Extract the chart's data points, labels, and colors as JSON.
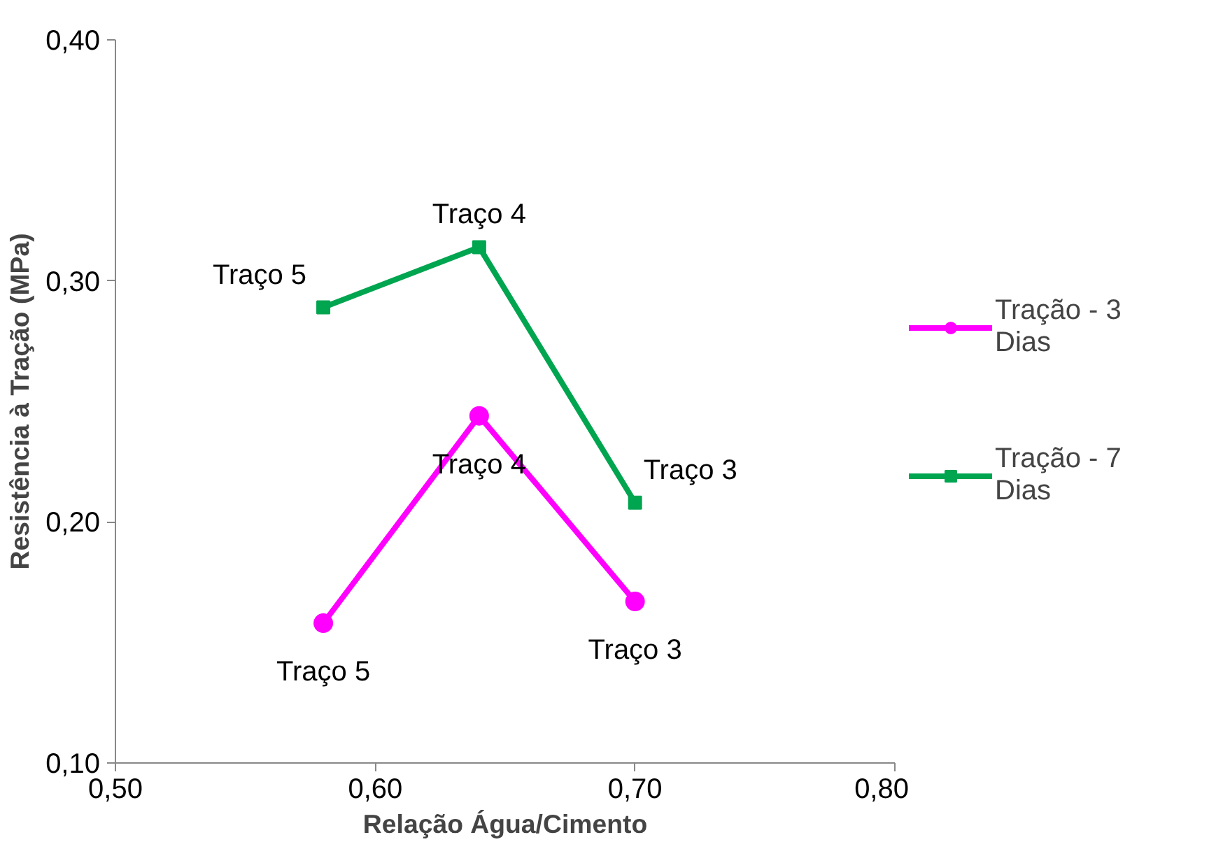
{
  "chart_data": {
    "type": "line",
    "xlabel": "Relação Água/Cimento",
    "ylabel": "Resistência à Tração (MPa)",
    "x": [
      0.58,
      0.64,
      0.7
    ],
    "series": [
      {
        "name": "Tração - 3 Dias",
        "color": "#ff00ff",
        "marker": "circle",
        "values": [
          0.158,
          0.244,
          0.167
        ]
      },
      {
        "name": "Tração - 7 Dias",
        "color": "#00a550",
        "marker": "square",
        "values": [
          0.289,
          0.314,
          0.208
        ]
      }
    ],
    "xlim": [
      0.5,
      0.8
    ],
    "ylim": [
      0.1,
      0.4
    ],
    "xticks": [
      {
        "value": 0.5,
        "label": "0,50"
      },
      {
        "value": 0.6,
        "label": "0,60"
      },
      {
        "value": 0.7,
        "label": "0,70"
      },
      {
        "value": 0.8,
        "label": "0,80"
      }
    ],
    "yticks": [
      {
        "value": 0.1,
        "label": "0,10"
      },
      {
        "value": 0.2,
        "label": "0,20"
      },
      {
        "value": 0.3,
        "label": "0,30"
      },
      {
        "value": 0.4,
        "label": "0,40"
      }
    ],
    "grid": false,
    "legend": "right",
    "annotations": [
      {
        "text": "Traço 5",
        "x": 0.58,
        "y": 0.158
      },
      {
        "text": "Traço 4",
        "x": 0.64,
        "y": 0.244
      },
      {
        "text": "Traço 3",
        "x": 0.7,
        "y": 0.167
      },
      {
        "text": "Traço 5",
        "x": 0.58,
        "y": 0.289
      },
      {
        "text": "Traço 4",
        "x": 0.64,
        "y": 0.314
      },
      {
        "text": "Traço 3",
        "x": 0.7,
        "y": 0.208
      }
    ]
  }
}
